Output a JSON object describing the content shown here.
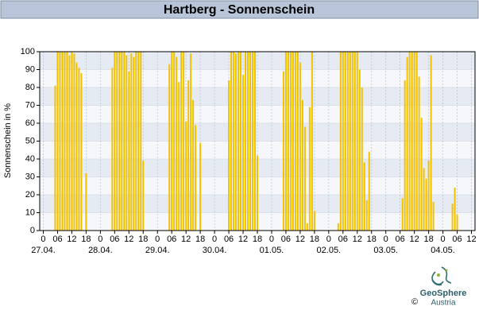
{
  "chart_data": {
    "type": "bar",
    "title": "Hartberg - Sonnenschein",
    "y_label": "Sonnenschein in %",
    "color": "#f2c200",
    "grid": true,
    "xlim": [
      -1.5,
      181.5
    ],
    "ylim": [
      0,
      100
    ],
    "yticks": [
      0,
      10,
      20,
      30,
      40,
      50,
      60,
      70,
      80,
      90,
      100
    ],
    "xticks": [
      0,
      {
        "value": 6,
        "label": "06"
      },
      12,
      18,
      {
        "value": 24,
        "label": "0"
      },
      {
        "value": 30,
        "label": "06"
      },
      {
        "value": 36,
        "label": "12"
      },
      {
        "value": 42,
        "label": "18"
      },
      {
        "value": 48,
        "label": "0"
      },
      {
        "value": 54,
        "label": "06"
      },
      {
        "value": 60,
        "label": "12"
      },
      {
        "value": 66,
        "label": "18"
      },
      {
        "value": 72,
        "label": "0"
      },
      {
        "value": 78,
        "label": "06"
      },
      {
        "value": 84,
        "label": "12"
      },
      {
        "value": 90,
        "label": "18"
      },
      {
        "value": 96,
        "label": "0"
      },
      {
        "value": 102,
        "label": "06"
      },
      {
        "value": 108,
        "label": "12"
      },
      {
        "value": 114,
        "label": "18"
      },
      {
        "value": 120,
        "label": "0"
      },
      {
        "value": 126,
        "label": "06"
      },
      {
        "value": 132,
        "label": "12"
      },
      {
        "value": 138,
        "label": "18"
      },
      {
        "value": 144,
        "label": "0"
      },
      {
        "value": 150,
        "label": "06"
      },
      {
        "value": 156,
        "label": "12"
      },
      {
        "value": 162,
        "label": "18"
      },
      {
        "value": 168,
        "label": "0"
      },
      {
        "value": 174,
        "label": "06"
      },
      {
        "value": 180,
        "label": "12"
      }
    ],
    "date_labels": [
      {
        "value": 0,
        "label": "27.04."
      },
      {
        "value": 24,
        "label": "28.04."
      },
      {
        "value": 48,
        "label": "29.04."
      },
      {
        "value": 72,
        "label": "30.04."
      },
      {
        "value": 96,
        "label": "01.05."
      },
      {
        "value": 120,
        "label": "02.05."
      },
      {
        "value": 144,
        "label": "03.05."
      },
      {
        "value": 168,
        "label": "04.05."
      }
    ],
    "x": [
      5,
      6,
      7,
      8,
      9,
      10,
      11,
      12,
      13,
      14,
      15,
      16,
      18,
      29,
      30,
      31,
      32,
      33,
      34,
      35,
      36,
      37,
      38,
      39,
      40,
      41,
      42,
      53,
      54,
      55,
      56,
      57,
      58,
      59,
      60,
      61,
      62,
      63,
      64,
      66,
      78,
      79,
      80,
      81,
      82,
      83,
      84,
      85,
      86,
      87,
      88,
      89,
      90,
      101,
      102,
      103,
      104,
      105,
      106,
      107,
      108,
      109,
      110,
      111,
      112,
      113,
      114,
      124,
      125,
      126,
      127,
      128,
      129,
      130,
      131,
      132,
      133,
      134,
      135,
      136,
      137,
      151,
      152,
      153,
      154,
      155,
      156,
      157,
      158,
      159,
      160,
      161,
      162,
      163,
      164,
      172,
      173,
      174
    ],
    "values": [
      81,
      100,
      100,
      100,
      100,
      100,
      98,
      100,
      99,
      94,
      91,
      88,
      32,
      91,
      100,
      100,
      100,
      100,
      100,
      98,
      89,
      99,
      97,
      100,
      100,
      100,
      39,
      93,
      100,
      100,
      97,
      83,
      100,
      100,
      61,
      84,
      99,
      73,
      59,
      49,
      84,
      100,
      100,
      99,
      100,
      100,
      87,
      100,
      100,
      100,
      100,
      100,
      42,
      89,
      100,
      100,
      100,
      100,
      100,
      100,
      94,
      73,
      58,
      4,
      69,
      100,
      11,
      4,
      100,
      100,
      100,
      100,
      100,
      100,
      100,
      100,
      90,
      80,
      38,
      17,
      44,
      18,
      84,
      97,
      100,
      100,
      100,
      100,
      86,
      63,
      35,
      29,
      39,
      98,
      16,
      15,
      24,
      9
    ],
    "logo_name": "GeoSphere",
    "logo_sub": "Austria",
    "copyright": "©"
  }
}
